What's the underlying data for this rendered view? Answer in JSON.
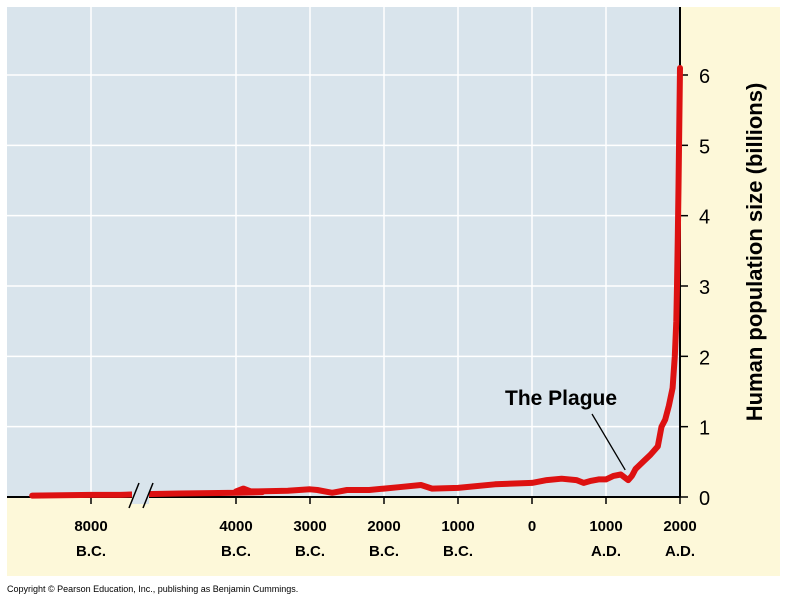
{
  "chart_data": {
    "type": "line",
    "title": "",
    "xlabel": "",
    "ylabel": "Human population size (billions)",
    "y_ticks": [
      "0",
      "1",
      "2",
      "3",
      "4",
      "5",
      "6"
    ],
    "ylim": [
      0,
      6.5
    ],
    "y_axis_side": "right",
    "x_ticks": [
      {
        "year": -8000,
        "line1": "8000",
        "line2": "B.C."
      },
      {
        "year": -4000,
        "line1": "4000",
        "line2": "B.C."
      },
      {
        "year": -3000,
        "line1": "3000",
        "line2": "B.C."
      },
      {
        "year": -2000,
        "line1": "2000",
        "line2": "B.C."
      },
      {
        "year": -1000,
        "line1": "1000",
        "line2": "B.C."
      },
      {
        "year": 0,
        "line1": "0",
        "line2": ""
      },
      {
        "year": 1000,
        "line1": "1000",
        "line2": "A.D."
      },
      {
        "year": 2000,
        "line1": "2000",
        "line2": "A.D."
      }
    ],
    "axis_break": "between 8000 B.C. and 4000 B.C.",
    "grid": true,
    "series": [
      {
        "color": "#dd1111",
        "x": [
          -9200,
          -8000,
          -7400,
          -7000,
          -6200,
          -5000,
          -4500,
          -4000,
          -3900,
          -3800,
          -3700,
          -3300,
          -3000,
          -2900,
          -2700,
          -2500,
          -2200,
          -2000,
          -1800,
          -1500,
          -1350,
          -1000,
          -500,
          0,
          200,
          400,
          600,
          700,
          800,
          900,
          1000,
          1100,
          1200,
          1300,
          1350,
          1400,
          1500,
          1600,
          1700,
          1750,
          1800,
          1850,
          1900,
          1930,
          1950,
          1960,
          1970,
          1980,
          1990,
          2000
        ],
        "y": [
          0.02,
          0.03,
          0.03,
          0.04,
          0.05,
          0.06,
          0.07,
          0.08,
          0.12,
          0.08,
          0.08,
          0.09,
          0.11,
          0.1,
          0.06,
          0.1,
          0.1,
          0.12,
          0.14,
          0.17,
          0.12,
          0.13,
          0.18,
          0.2,
          0.24,
          0.26,
          0.24,
          0.2,
          0.23,
          0.25,
          0.25,
          0.3,
          0.32,
          0.24,
          0.3,
          0.4,
          0.5,
          0.6,
          0.72,
          1.0,
          1.1,
          1.3,
          1.55,
          2.0,
          2.5,
          3.0,
          3.7,
          4.4,
          5.3,
          6.1
        ]
      }
    ],
    "annotations": [
      {
        "text": "The Plague",
        "year": 1300,
        "value": 0.3
      }
    ]
  },
  "colors": {
    "plot_background": "#d9e4ec",
    "axis_panel_background": "#fdf8d9",
    "gridline": "#ffffff",
    "series": "#dd1111"
  },
  "footer": {
    "copyright": "Copyright © Pearson Education, Inc., publishing as Benjamin Cummings."
  }
}
